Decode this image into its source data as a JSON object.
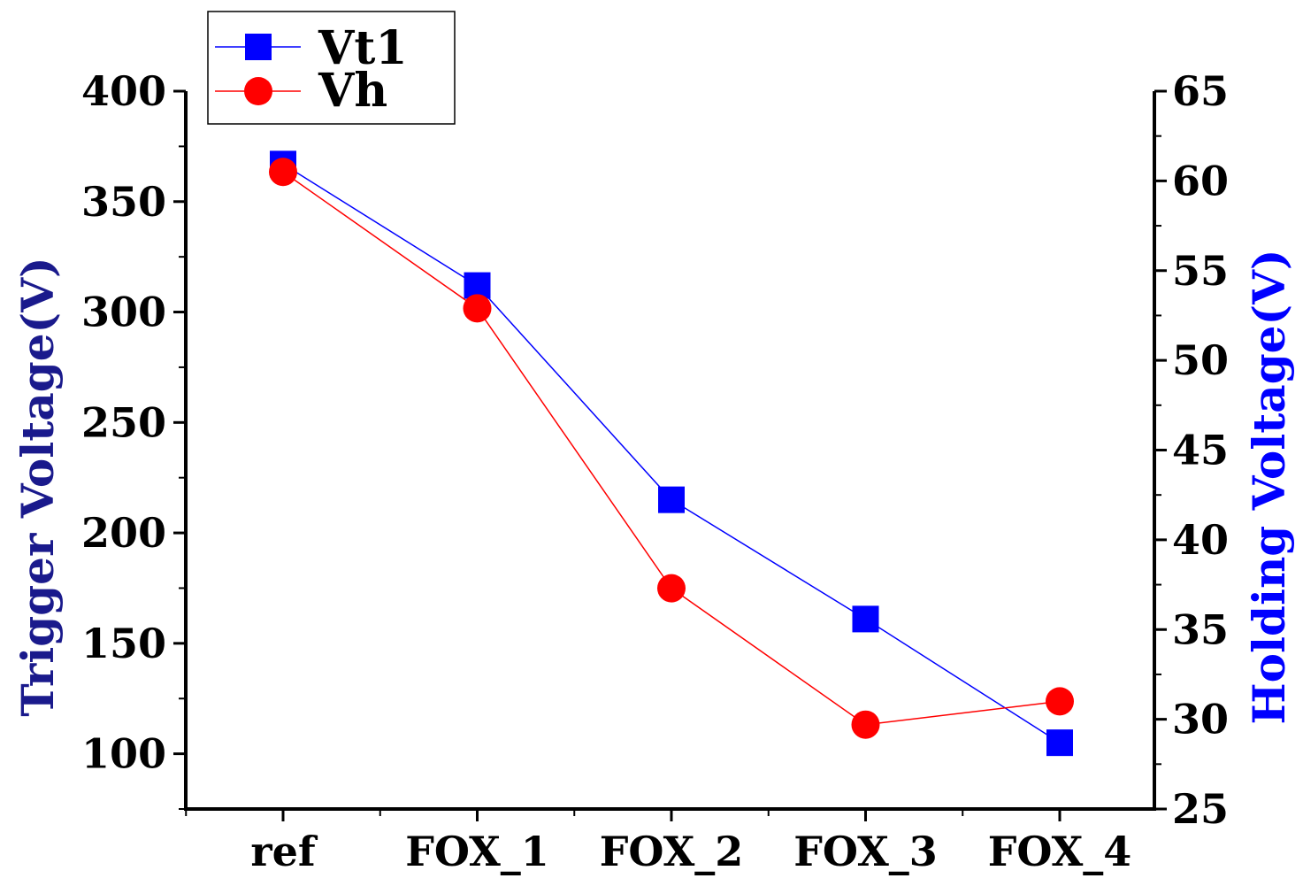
{
  "chart_data": {
    "type": "line",
    "categories": [
      "ref",
      "FOX_1",
      "FOX_2",
      "FOX_3",
      "FOX_4"
    ],
    "left_axis": {
      "label": "Trigger Voltage(V)",
      "label_color": "#1a1a8c",
      "ylim": [
        75,
        400
      ],
      "ticks": [
        "100",
        "150",
        "200",
        "250",
        "300",
        "350",
        "400"
      ]
    },
    "right_axis": {
      "label": "Holding Voltage(V)",
      "label_color": "#0000ff",
      "ylim": [
        25,
        65
      ],
      "ticks": [
        "25",
        "30",
        "35",
        "40",
        "45",
        "50",
        "55",
        "60",
        "65"
      ]
    },
    "series": [
      {
        "name": "Vt1",
        "axis": "left",
        "color": "#0000ff",
        "marker": "square",
        "values": [
          367,
          312,
          215,
          161,
          105
        ]
      },
      {
        "name": "Vh",
        "axis": "right",
        "color": "#ff0000",
        "marker": "circle",
        "values": [
          60.5,
          52.9,
          37.3,
          29.7,
          31.0
        ]
      }
    ],
    "legend": {
      "position": "top-left"
    },
    "grid": false
  }
}
